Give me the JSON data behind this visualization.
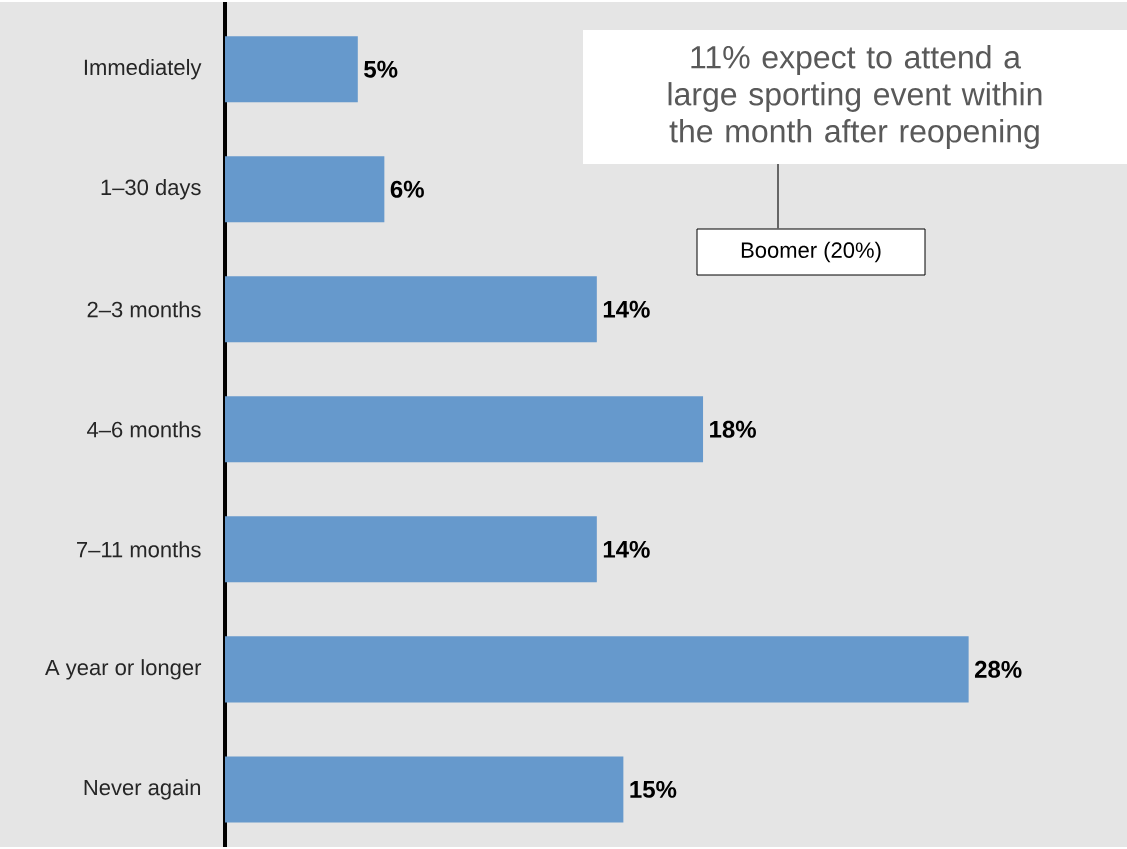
{
  "chart_data": {
    "type": "bar",
    "orientation": "horizontal",
    "categories": [
      "Immediately",
      "1–30 days",
      "2–3 months",
      "4–6 months",
      "7–11 months",
      "A year or longer",
      "Never again"
    ],
    "values": [
      5,
      6,
      14,
      18,
      14,
      28,
      15
    ],
    "value_labels": [
      "5%",
      "6%",
      "14%",
      "18%",
      "14%",
      "28%",
      "15%"
    ],
    "color": "#6699cc",
    "annotations": [
      "11% expect to attend a large sporting event within the month after reopening",
      "Boomer (20%)"
    ]
  }
}
